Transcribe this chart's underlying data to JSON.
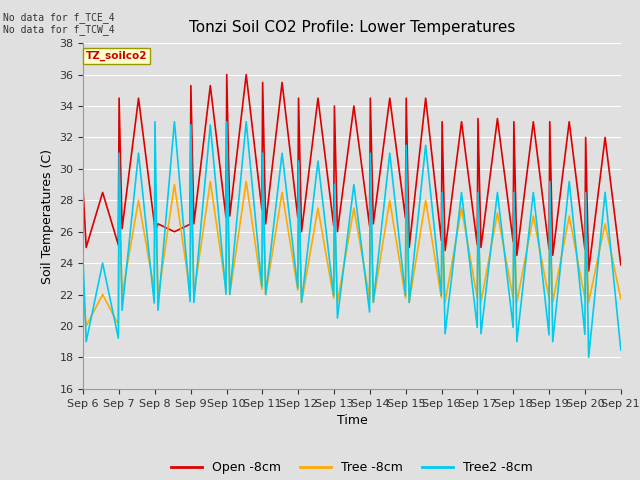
{
  "title": "Tonzi Soil CO2 Profile: Lower Temperatures",
  "xlabel": "Time",
  "ylabel": "Soil Temperatures (C)",
  "ylim": [
    16,
    38
  ],
  "yticks": [
    16,
    18,
    20,
    22,
    24,
    26,
    28,
    30,
    32,
    34,
    36,
    38
  ],
  "bg_color": "#e0e0e0",
  "annotation_text": "No data for f_TCE_4\nNo data for f_TCW_4",
  "stamp_text": "TZ_soilco2",
  "legend_labels": [
    "Open -8cm",
    "Tree -8cm",
    "Tree2 -8cm"
  ],
  "line_colors": [
    "#dd0000",
    "#ffaa00",
    "#00ccee"
  ],
  "line_width": 1.2,
  "xtick_labels": [
    "Sep 6",
    "Sep 7",
    "Sep 8",
    "Sep 9",
    "Sep 10",
    "Sep 11",
    "Sep 12",
    "Sep 13",
    "Sep 14",
    "Sep 15",
    "Sep 16",
    "Sep 17",
    "Sep 18",
    "Sep 19",
    "Sep 20",
    "Sep 21"
  ],
  "open_peaks": [
    28.5,
    34.5,
    26.0,
    35.3,
    36.0,
    35.5,
    34.5,
    34.0,
    34.5,
    34.5,
    33.0,
    33.2,
    33.0,
    33.0,
    32.0,
    31.8,
    32.3
  ],
  "open_troughs": [
    25.0,
    26.2,
    26.5,
    26.5,
    27.0,
    26.5,
    26.0,
    26.0,
    26.5,
    25.0,
    24.8,
    25.0,
    24.5,
    24.5,
    23.5,
    23.0
  ],
  "tree_peaks": [
    22.0,
    28.0,
    29.0,
    29.2,
    29.2,
    28.5,
    27.5,
    27.5,
    28.0,
    28.0,
    27.5,
    27.2,
    27.0,
    27.0,
    26.5,
    26.0,
    27.0
  ],
  "tree_troughs": [
    20.0,
    22.0,
    21.8,
    22.0,
    22.0,
    22.0,
    21.5,
    21.5,
    21.5,
    21.5,
    21.5,
    21.5,
    21.5,
    21.5,
    21.5,
    22.0
  ],
  "tree2_peaks": [
    24.0,
    31.0,
    33.0,
    32.8,
    33.0,
    31.0,
    30.5,
    29.0,
    31.0,
    31.5,
    28.5,
    28.5,
    28.5,
    29.2,
    28.5,
    28.5,
    29.5
  ],
  "tree2_troughs": [
    19.0,
    21.0,
    21.0,
    21.5,
    22.0,
    22.0,
    21.5,
    20.5,
    21.5,
    21.5,
    19.5,
    19.5,
    19.0,
    19.0,
    18.0,
    17.3
  ]
}
